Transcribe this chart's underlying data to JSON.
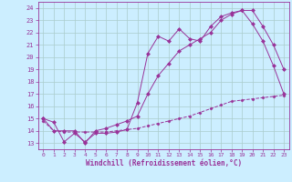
{
  "xlabel": "Windchill (Refroidissement éolien,°C)",
  "bg_color": "#cceeff",
  "grid_color": "#aacccc",
  "line_color": "#993399",
  "xlim": [
    -0.5,
    23.5
  ],
  "ylim": [
    12.5,
    24.5
  ],
  "xticks": [
    0,
    1,
    2,
    3,
    4,
    5,
    6,
    7,
    8,
    9,
    10,
    11,
    12,
    13,
    14,
    15,
    16,
    17,
    18,
    19,
    20,
    21,
    22,
    23
  ],
  "yticks": [
    13,
    14,
    15,
    16,
    17,
    18,
    19,
    20,
    21,
    22,
    23,
    24
  ],
  "line1_x": [
    0,
    1,
    2,
    3,
    4,
    5,
    6,
    7,
    8,
    9,
    10,
    11,
    12,
    13,
    14,
    15,
    16,
    17,
    18,
    19,
    20,
    21,
    22,
    23
  ],
  "line1_y": [
    15.0,
    14.7,
    13.1,
    13.8,
    13.1,
    13.8,
    13.8,
    13.9,
    14.1,
    16.3,
    20.3,
    21.7,
    21.3,
    22.3,
    21.5,
    21.3,
    22.5,
    23.3,
    23.6,
    23.8,
    22.7,
    21.3,
    19.3,
    17.0
  ],
  "line2_x": [
    0,
    1,
    2,
    3,
    4,
    5,
    6,
    7,
    8,
    9,
    10,
    11,
    12,
    13,
    14,
    15,
    16,
    17,
    18,
    19,
    20,
    21,
    22,
    23
  ],
  "line2_y": [
    14.8,
    14.0,
    13.9,
    13.9,
    13.9,
    13.9,
    13.9,
    14.0,
    14.1,
    14.2,
    14.4,
    14.6,
    14.8,
    15.0,
    15.2,
    15.5,
    15.8,
    16.1,
    16.4,
    16.5,
    16.6,
    16.7,
    16.8,
    16.9
  ],
  "line3_x": [
    0,
    1,
    2,
    3,
    4,
    5,
    6,
    7,
    8,
    9,
    10,
    11,
    12,
    13,
    14,
    15,
    16,
    17,
    18,
    19,
    20,
    21,
    22,
    23
  ],
  "line3_y": [
    15.0,
    14.0,
    14.0,
    14.0,
    13.0,
    14.0,
    14.2,
    14.5,
    14.8,
    15.2,
    17.0,
    18.5,
    19.5,
    20.5,
    21.0,
    21.5,
    22.0,
    23.0,
    23.5,
    23.8,
    23.8,
    22.5,
    21.0,
    19.0
  ]
}
